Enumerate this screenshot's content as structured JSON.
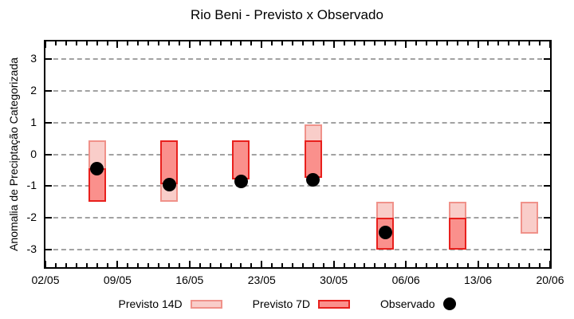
{
  "title": "Rio Beni - Previsto x Observado",
  "legend": {
    "items": [
      {
        "label": "Previsto 14D",
        "swatch": "light-pink-box"
      },
      {
        "label": "Previsto 7D",
        "swatch": "red-box"
      },
      {
        "label": "Observado",
        "swatch": "black-dot"
      }
    ]
  },
  "colors": {
    "previsto_14d_fill": "#f9cdc9",
    "previsto_14d_border": "#f0928a",
    "previsto_7d_fill": "#fa908c",
    "previsto_7d_border": "#e8201d",
    "observado": "#000000",
    "gridline": "#a2a2a2",
    "axis": "#000000"
  },
  "chart_data": {
    "type": "bar",
    "title": "Rio Beni - Previsto x Observado",
    "xlabel": "",
    "ylabel": "Anomalia de Preciptação Categorizada",
    "ylim": [
      -3.55,
      3.55
    ],
    "yticks": [
      3,
      2,
      1,
      0,
      -1,
      -2,
      -3
    ],
    "xtick_labels": [
      "02/05",
      "09/05",
      "16/05",
      "23/05",
      "30/05",
      "06/06",
      "13/06",
      "20/06"
    ],
    "xtick_days": [
      0,
      7,
      14,
      21,
      28,
      35,
      42,
      49
    ],
    "xlim_days": [
      0,
      49
    ],
    "minor_xtick_every_days": 1,
    "grid": "horizontal dashed at integer y values",
    "legend_position": "bottom",
    "categories": [
      "07/05",
      "14/05",
      "21/05",
      "28/05",
      "04/06",
      "11/06",
      "18/06"
    ],
    "bar_days": [
      5,
      12,
      19,
      26,
      33,
      40,
      47
    ],
    "series": [
      {
        "name": "Previsto 14D",
        "type": "range-bar",
        "ranges": [
          [
            0.45,
            -1.5
          ],
          [
            0.45,
            -1.5
          ],
          [
            0.45,
            -0.8
          ],
          [
            0.95,
            -0.75
          ],
          [
            -1.5,
            -3.0
          ],
          [
            -1.5,
            -3.0
          ],
          [
            -1.5,
            -2.5
          ]
        ]
      },
      {
        "name": "Previsto 7D",
        "type": "range-bar",
        "ranges": [
          [
            -0.45,
            -1.5
          ],
          [
            0.45,
            -0.95
          ],
          [
            0.45,
            -0.8
          ],
          [
            0.45,
            -0.75
          ],
          [
            -2.0,
            -3.0
          ],
          [
            -2.0,
            -3.0
          ],
          null
        ]
      },
      {
        "name": "Observado",
        "type": "scatter",
        "values": [
          -0.45,
          -0.95,
          -0.85,
          -0.8,
          -2.45,
          null,
          null
        ]
      }
    ]
  }
}
